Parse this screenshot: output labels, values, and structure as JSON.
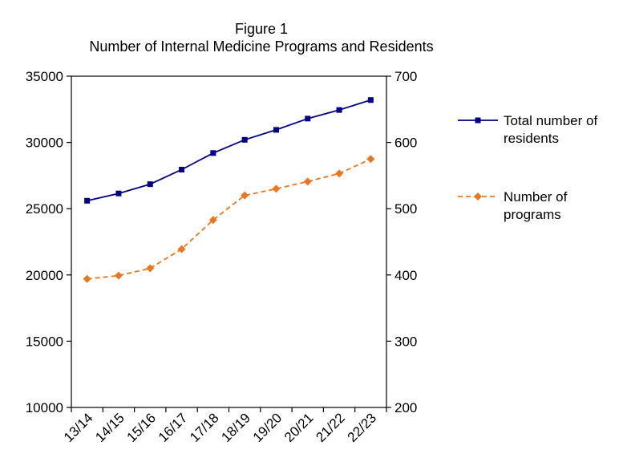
{
  "chart_data": {
    "type": "line",
    "title": "Figure 1",
    "subtitle": "Number of Internal Medicine Programs and Residents",
    "categories": [
      "13/14",
      "14/15",
      "15/16",
      "16/17",
      "17/18",
      "18/19",
      "19/20",
      "20/21",
      "21/22",
      "22/23"
    ],
    "y_left": {
      "min": 10000,
      "max": 35000,
      "ticks": [
        10000,
        15000,
        20000,
        25000,
        30000,
        35000
      ]
    },
    "y_right": {
      "min": 200,
      "max": 700,
      "ticks": [
        200,
        300,
        400,
        500,
        600,
        700
      ]
    },
    "series": [
      {
        "name": "Total number of residents",
        "legend_lines": [
          "Total number of",
          "residents"
        ],
        "axis": "left",
        "color": "#000080",
        "marker": "square",
        "dashed": false,
        "values": [
          25600,
          26150,
          26850,
          27950,
          29200,
          30200,
          30950,
          31800,
          32450,
          33200
        ]
      },
      {
        "name": "Number of programs",
        "legend_lines": [
          "Number of",
          "programs"
        ],
        "axis": "right",
        "color": "#E87722",
        "marker": "diamond",
        "dashed": true,
        "values": [
          394,
          399,
          410,
          439,
          483,
          520,
          530,
          541,
          553,
          575
        ]
      }
    ],
    "grid": false,
    "legend_position": "right"
  }
}
